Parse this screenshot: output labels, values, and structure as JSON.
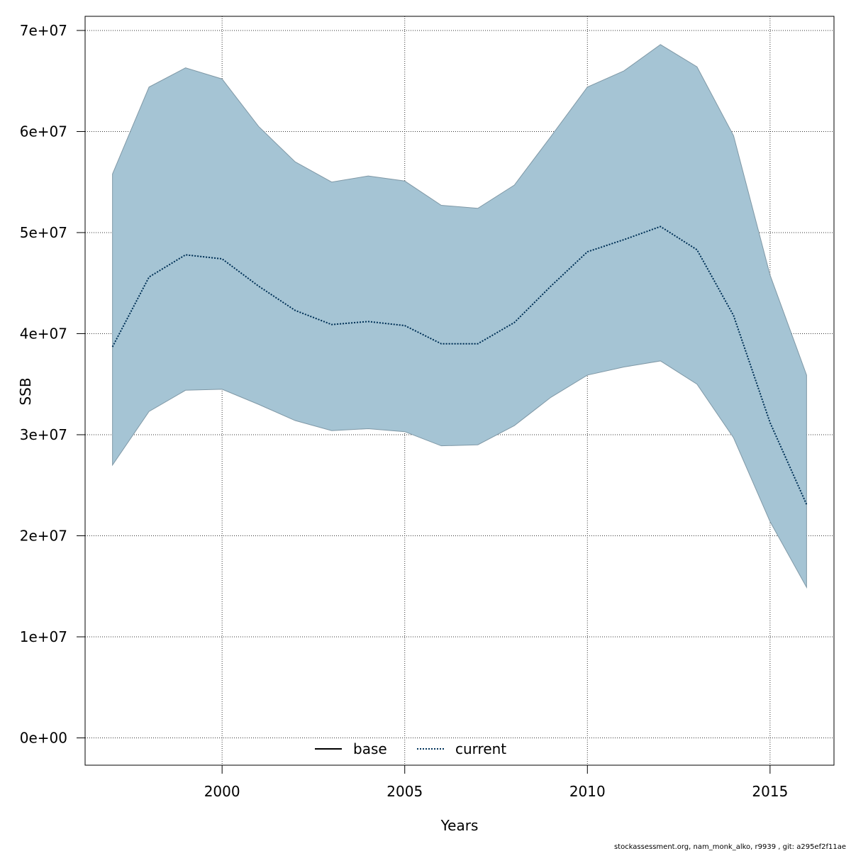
{
  "chart_data": {
    "type": "area",
    "xlabel": "Years",
    "ylabel": "SSB",
    "xlim": [
      1996.25,
      2016.75
    ],
    "ylim": [
      -2700000,
      71400000
    ],
    "x_ticks": [
      2000,
      2005,
      2010,
      2015
    ],
    "x_tick_labels": [
      "2000",
      "2005",
      "2010",
      "2015"
    ],
    "y_ticks": [
      0,
      10000000,
      20000000,
      30000000,
      40000000,
      50000000,
      60000000,
      70000000
    ],
    "y_tick_labels": [
      "0e+00",
      "1e+07",
      "2e+07",
      "3e+07",
      "4e+07",
      "5e+07",
      "6e+07",
      "7e+07"
    ],
    "grid": true,
    "legend_position": "bottom",
    "x": [
      1997,
      1998,
      1999,
      2000,
      2001,
      2002,
      2003,
      2004,
      2005,
      2006,
      2007,
      2008,
      2009,
      2010,
      2011,
      2012,
      2013,
      2014,
      2015,
      2016
    ],
    "band": {
      "upper": [
        55800000,
        64400000,
        66300000,
        65200000,
        60500000,
        57000000,
        55000000,
        55600000,
        55100000,
        52700000,
        52400000,
        54700000,
        59500000,
        64400000,
        66000000,
        68600000,
        66400000,
        59600000,
        45800000,
        35900000
      ],
      "lower": [
        27000000,
        32300000,
        34400000,
        34500000,
        33000000,
        31400000,
        30400000,
        30600000,
        30300000,
        28900000,
        29000000,
        30900000,
        33700000,
        35900000,
        36700000,
        37300000,
        35000000,
        29700000,
        21400000,
        14900000
      ]
    },
    "series": [
      {
        "name": "base",
        "style": "solid",
        "values": [
          38700000,
          45600000,
          47800000,
          47400000,
          44700000,
          42300000,
          40900000,
          41200000,
          40800000,
          39000000,
          39000000,
          41100000,
          44700000,
          48100000,
          49300000,
          50600000,
          48300000,
          41800000,
          31200000,
          23100000
        ]
      },
      {
        "name": "current",
        "style": "dotted",
        "values": [
          38700000,
          45600000,
          47800000,
          47400000,
          44700000,
          42300000,
          40900000,
          41200000,
          40800000,
          39000000,
          39000000,
          41100000,
          44700000,
          48100000,
          49300000,
          50600000,
          48300000,
          41800000,
          31200000,
          23100000
        ]
      }
    ],
    "colors": {
      "band_fill": "#a5c4d4",
      "band_edge": "#7f98a6",
      "base_line": "#000000",
      "current_line": "#00335a",
      "current_dots": "#1f77b4",
      "grid": "#333333"
    }
  },
  "legend": {
    "base_label": "base",
    "current_label": "current"
  },
  "footer": {
    "text": "stockassessment.org, nam_monk_alko, r9939 , git: a295ef2f11ae"
  }
}
